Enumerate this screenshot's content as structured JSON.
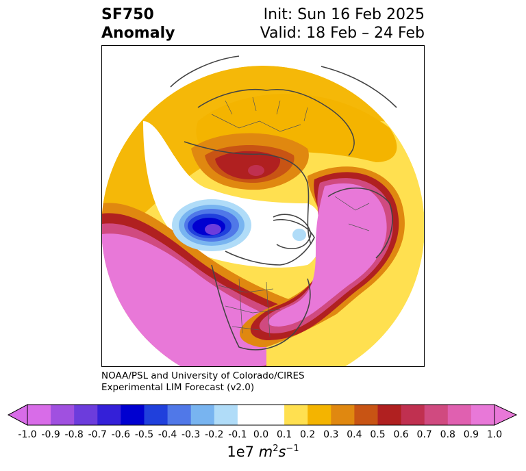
{
  "title": {
    "line1": "SF750",
    "line2": "Anomaly",
    "init": "Init: Sun 16 Feb 2025",
    "valid": "Valid: 18 Feb – 24 Feb"
  },
  "credit": {
    "line1": "NOAA/PSL and University of Colorado/CIRES",
    "line2": "Experimental LIM Forecast (v2.0)"
  },
  "colorbar": {
    "ticks": [
      "-1.0",
      "-0.9",
      "-0.8",
      "-0.7",
      "-0.6",
      "-0.5",
      "-0.4",
      "-0.3",
      "-0.2",
      "-0.1",
      "0.0",
      "0.1",
      "0.2",
      "0.3",
      "0.4",
      "0.5",
      "0.6",
      "0.7",
      "0.8",
      "0.9",
      "1.0"
    ],
    "colors": [
      "#d86ce8",
      "#a050e0",
      "#6c3cdc",
      "#3420d8",
      "#0000d0",
      "#2040dc",
      "#5078e8",
      "#78b4f0",
      "#b0dcf8",
      "#ffffff",
      "#ffffff",
      "#ffe050",
      "#f4b400",
      "#e08810",
      "#c85414",
      "#b02020",
      "#c03050",
      "#d04a80",
      "#e060b0",
      "#e878d8"
    ],
    "units_prefix": "1e7 ",
    "units_m": "m",
    "units_exp1": "2",
    "units_s": "s",
    "units_exp2": "−1"
  }
}
